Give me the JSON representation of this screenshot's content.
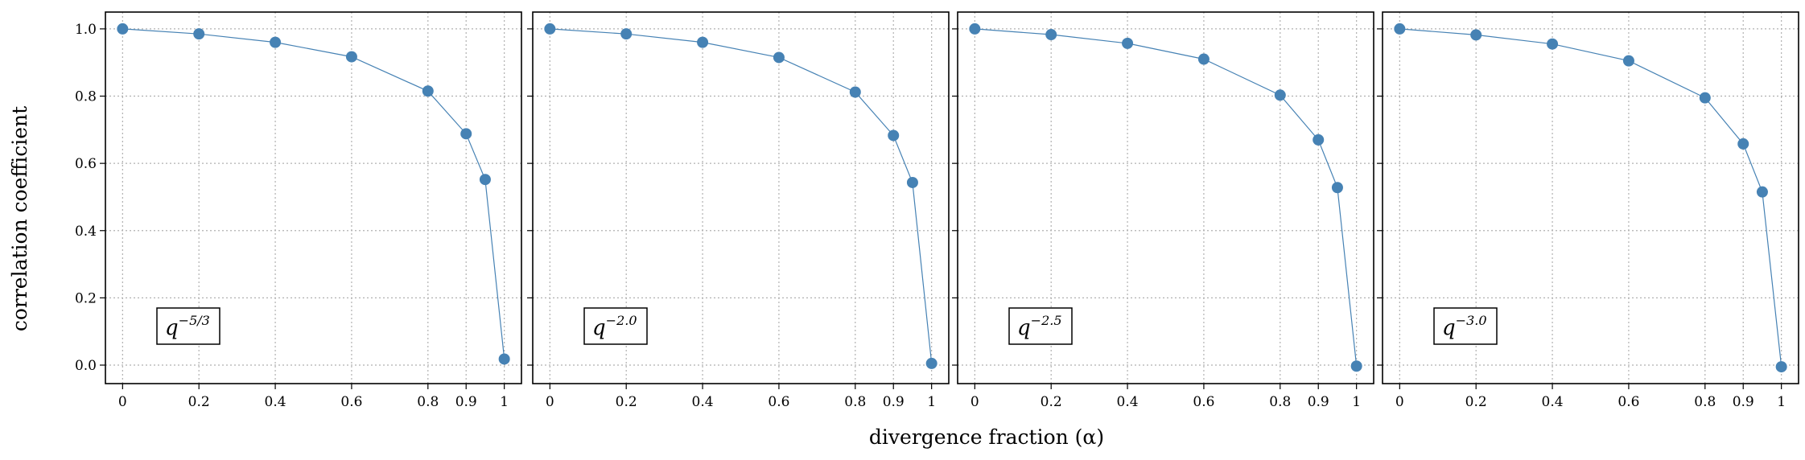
{
  "chart_data": {
    "type": "line",
    "xlabel": "divergence fraction (α)",
    "ylabel": "correlation coefficient",
    "x": [
      0,
      0.2,
      0.4,
      0.6,
      0.8,
      0.9,
      0.95,
      1
    ],
    "x_ticks": [
      0,
      0.2,
      0.4,
      0.6,
      0.8,
      0.9,
      1
    ],
    "x_tick_labels": [
      "0",
      "0.2",
      "0.4",
      "0.6",
      "0.8",
      "0.9",
      "1"
    ],
    "y_ticks": [
      0.0,
      0.2,
      0.4,
      0.6,
      0.8,
      1.0
    ],
    "y_tick_labels": [
      "0.0",
      "0.2",
      "0.4",
      "0.6",
      "0.8",
      "1.0"
    ],
    "xlim": [
      -0.045,
      1.045
    ],
    "ylim": [
      -0.055,
      1.05
    ],
    "grid": true,
    "color": "#4682b4",
    "panels": [
      {
        "label_base": "q",
        "label_exp": "−5/3",
        "values": [
          1.0,
          0.985,
          0.96,
          0.917,
          0.815,
          0.688,
          0.552,
          0.018
        ]
      },
      {
        "label_base": "q",
        "label_exp": "−2.0",
        "values": [
          1.0,
          0.985,
          0.96,
          0.915,
          0.812,
          0.683,
          0.543,
          0.005
        ]
      },
      {
        "label_base": "q",
        "label_exp": "−2.5",
        "values": [
          1.0,
          0.983,
          0.957,
          0.91,
          0.803,
          0.67,
          0.528,
          -0.003
        ]
      },
      {
        "label_base": "q",
        "label_exp": "−3.0",
        "values": [
          1.0,
          0.982,
          0.955,
          0.905,
          0.795,
          0.658,
          0.515,
          -0.005
        ]
      }
    ]
  }
}
